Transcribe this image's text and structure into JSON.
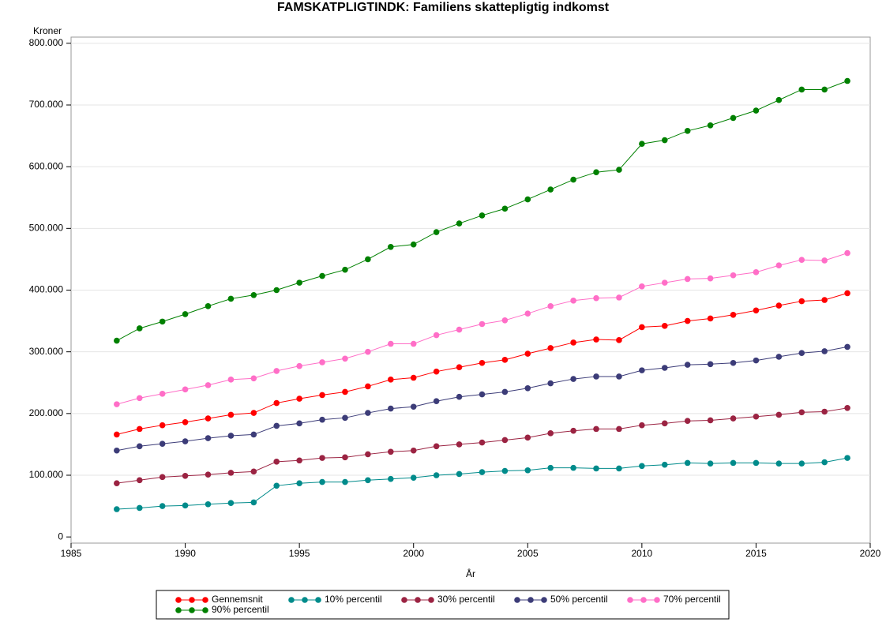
{
  "chart_data": {
    "type": "line",
    "title": "FAMSKATPLIGTINDK: Familiens skattepligtig indkomst",
    "x_label": "År",
    "y_label": "Kroner",
    "x": [
      1987,
      1988,
      1989,
      1990,
      1991,
      1992,
      1993,
      1994,
      1995,
      1996,
      1997,
      1998,
      1999,
      2000,
      2001,
      2002,
      2003,
      2004,
      2005,
      2006,
      2007,
      2008,
      2009,
      2010,
      2011,
      2012,
      2013,
      2014,
      2015,
      2016,
      2017,
      2018,
      2019
    ],
    "series": [
      {
        "name": "Gennemsnit",
        "color": "#ff0000",
        "values": [
          166000,
          175000,
          181000,
          186000,
          192000,
          198000,
          201000,
          217000,
          224000,
          230000,
          235000,
          244000,
          255000,
          258000,
          268000,
          275000,
          282000,
          287000,
          297000,
          306000,
          315000,
          320000,
          319000,
          340000,
          342000,
          350000,
          354000,
          360000,
          367000,
          375000,
          382000,
          384000,
          395000
        ]
      },
      {
        "name": "10% percentil",
        "color": "#008b8b",
        "values": [
          45000,
          47000,
          50000,
          51000,
          53000,
          55000,
          56000,
          83000,
          87000,
          89000,
          89000,
          92000,
          94000,
          96000,
          100000,
          102000,
          105000,
          107000,
          108000,
          112000,
          112000,
          111000,
          111000,
          115000,
          117000,
          120000,
          119000,
          120000,
          120000,
          119000,
          119000,
          121000,
          128000
        ]
      },
      {
        "name": "30% percentil",
        "color": "#9b2342",
        "values": [
          87000,
          92000,
          97000,
          99000,
          101000,
          104000,
          106000,
          122000,
          124000,
          128000,
          129000,
          134000,
          138000,
          140000,
          147000,
          150000,
          153000,
          157000,
          161000,
          168000,
          172000,
          175000,
          175000,
          181000,
          184000,
          188000,
          189000,
          192000,
          195000,
          198000,
          202000,
          203000,
          209000
        ]
      },
      {
        "name": "50% percentil",
        "color": "#3c3c78",
        "values": [
          140000,
          147000,
          151000,
          155000,
          160000,
          164000,
          166000,
          180000,
          184000,
          190000,
          193000,
          201000,
          208000,
          211000,
          220000,
          227000,
          231000,
          235000,
          241000,
          249000,
          256000,
          260000,
          260000,
          270000,
          274000,
          279000,
          280000,
          282000,
          286000,
          292000,
          298000,
          301000,
          308000
        ]
      },
      {
        "name": "70% percentil",
        "color": "#ff6ec7",
        "values": [
          215000,
          225000,
          232000,
          239000,
          246000,
          255000,
          257000,
          269000,
          277000,
          283000,
          289000,
          300000,
          313000,
          313000,
          327000,
          336000,
          345000,
          351000,
          362000,
          374000,
          383000,
          387000,
          388000,
          406000,
          412000,
          418000,
          419000,
          424000,
          429000,
          440000,
          449000,
          448000,
          460000
        ]
      },
      {
        "name": "90% percentil",
        "color": "#008000",
        "values": [
          318000,
          338000,
          349000,
          361000,
          374000,
          386000,
          392000,
          400000,
          412000,
          423000,
          433000,
          450000,
          470000,
          474000,
          494000,
          508000,
          521000,
          532000,
          547000,
          563000,
          579000,
          591000,
          595000,
          637000,
          643000,
          658000,
          667000,
          679000,
          691000,
          708000,
          725000,
          725000,
          739000
        ]
      }
    ],
    "xlim": [
      1985,
      2020
    ],
    "xticks": [
      1985,
      1990,
      1995,
      2000,
      2005,
      2010,
      2015,
      2020
    ],
    "ylim": [
      -10000,
      810000
    ],
    "yticks": [
      0,
      {
        "value": 100000,
        "label": "100.000"
      },
      {
        "value": 200000,
        "label": "200.000"
      },
      {
        "value": 300000,
        "label": "300.000"
      },
      {
        "value": 400000,
        "label": "400.000"
      },
      {
        "value": 500000,
        "label": "500.000"
      },
      {
        "value": 600000,
        "label": "600.000"
      },
      {
        "value": 700000,
        "label": "700.000"
      },
      {
        "value": 800000,
        "label": "800.000"
      }
    ],
    "grid": true
  }
}
